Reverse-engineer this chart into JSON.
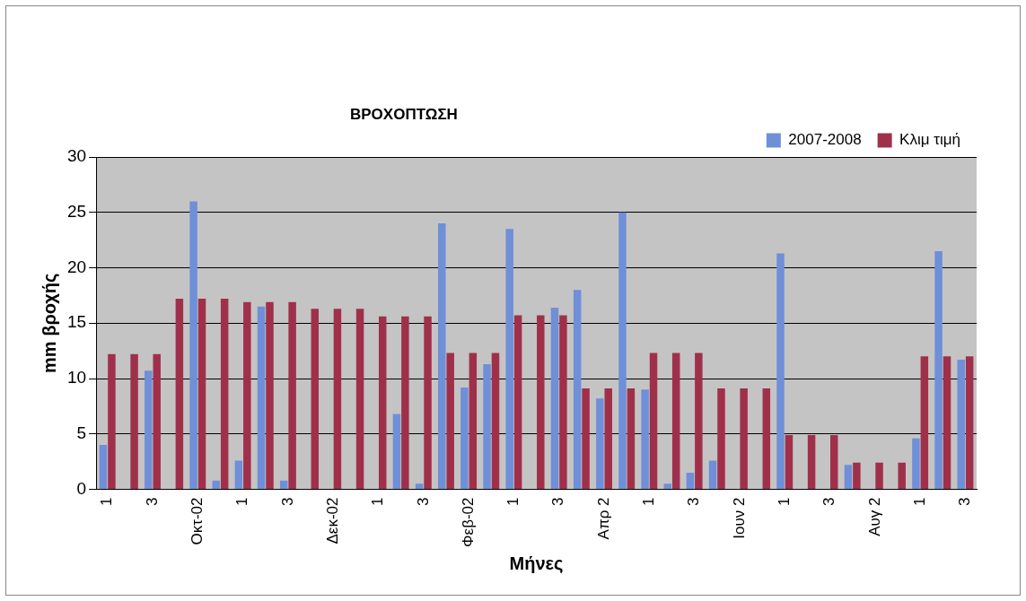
{
  "chart_data": {
    "type": "bar",
    "title": "ΒΡΟΧΟΠΤΩΣΗ",
    "xlabel": "Μήνες",
    "ylabel": "mm βροχής",
    "categories": [
      "1",
      null,
      "3",
      null,
      "Οκτ-02",
      null,
      "1",
      null,
      "3",
      null,
      "Δεκ-02",
      null,
      "1",
      null,
      "3",
      null,
      "Φεβ-02",
      null,
      "1",
      null,
      "3",
      null,
      "Απρ 2",
      null,
      "1",
      null,
      "3",
      null,
      "Ιουν 2",
      null,
      "1",
      null,
      "3",
      null,
      "Αυγ 2",
      null,
      "1",
      null,
      "3"
    ],
    "series": [
      {
        "name": "2007-2008",
        "color": "#6f8fd8",
        "values": [
          4,
          0,
          10.7,
          0,
          26,
          0.8,
          2.6,
          16.5,
          0.8,
          0,
          0,
          0,
          0,
          6.8,
          0.5,
          24,
          9.2,
          11.3,
          23.5,
          0,
          16.4,
          18,
          8.2,
          25,
          9,
          0.5,
          1.5,
          2.6,
          0,
          0,
          21.3,
          0,
          0,
          2.2,
          0,
          0,
          4.6,
          21.5,
          11.7
        ]
      },
      {
        "name": "Κλιμ τιμή",
        "color": "#a0304a",
        "values": [
          12.2,
          12.2,
          12.2,
          17.2,
          17.2,
          17.2,
          16.9,
          16.9,
          16.9,
          16.3,
          16.3,
          16.3,
          15.6,
          15.6,
          15.6,
          12.3,
          12.3,
          12.3,
          15.7,
          15.7,
          15.7,
          9.1,
          9.1,
          9.1,
          12.3,
          12.3,
          12.3,
          9.1,
          9.1,
          9.1,
          4.9,
          4.9,
          4.9,
          2.4,
          2.4,
          2.4,
          12,
          12,
          12
        ]
      }
    ],
    "ylim": [
      0,
      30
    ],
    "yticks": [
      0,
      5,
      10,
      15,
      20,
      25,
      30
    ],
    "grid": "y",
    "legend": "top right"
  }
}
